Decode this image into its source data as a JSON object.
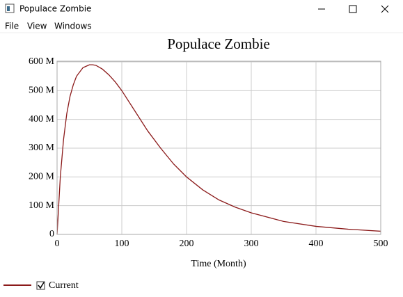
{
  "window": {
    "title": "Populace Zombie"
  },
  "menu": [
    "File",
    "View",
    "Windows"
  ],
  "chart_data": {
    "type": "line",
    "title": "Populace Zombie",
    "x_label": "Time (Month)",
    "x": [
      0,
      5,
      10,
      15,
      20,
      25,
      30,
      40,
      50,
      55,
      60,
      70,
      80,
      90,
      100,
      120,
      140,
      160,
      180,
      200,
      225,
      250,
      275,
      300,
      350,
      400,
      450,
      500
    ],
    "series": [
      {
        "name": "Current",
        "color": "#8b1a1a",
        "values": [
          0,
          200000000,
          330000000,
          420000000,
          480000000,
          520000000,
          550000000,
          580000000,
          590000000,
          590000000,
          588000000,
          575000000,
          555000000,
          530000000,
          500000000,
          430000000,
          360000000,
          300000000,
          245000000,
          200000000,
          155000000,
          120000000,
          95000000,
          75000000,
          45000000,
          28000000,
          18000000,
          11000000
        ]
      }
    ],
    "xlim": [
      0,
      500
    ],
    "xticks": [
      0,
      100,
      200,
      300,
      400,
      500
    ],
    "ylim": [
      0,
      600000000
    ],
    "yticks": [
      0,
      {
        "value": 100000000,
        "label": "100 M"
      },
      {
        "value": 200000000,
        "label": "200 M"
      },
      {
        "value": 300000000,
        "label": "300 M"
      },
      {
        "value": 400000000,
        "label": "400 M"
      },
      {
        "value": 500000000,
        "label": "500 M"
      },
      {
        "value": 600000000,
        "label": "600 M"
      }
    ],
    "grid": true
  }
}
